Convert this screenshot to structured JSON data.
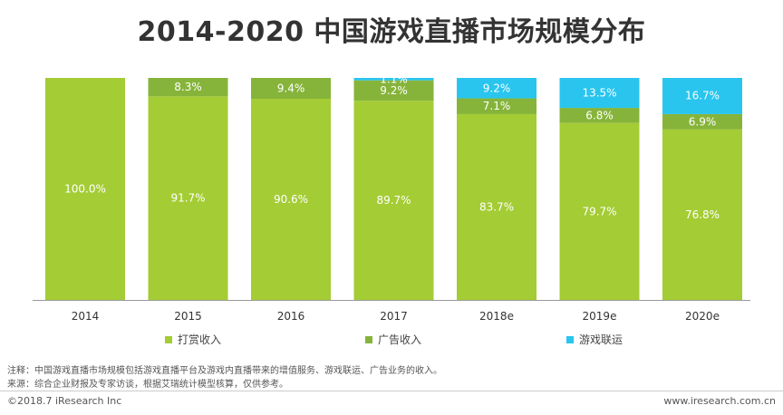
{
  "chart_data": {
    "type": "bar",
    "stacked": true,
    "title": "2014-2020 中国游戏直播市场规模分布",
    "categories": [
      "2014",
      "2015",
      "2016",
      "2017",
      "2018e",
      "2019e",
      "2020e"
    ],
    "series": [
      {
        "name": "打赏收入",
        "color": "#a4cc34",
        "values": [
          100.0,
          91.7,
          90.6,
          89.7,
          83.7,
          79.7,
          76.8
        ],
        "labels": [
          "100.0%",
          "91.7%",
          "90.6%",
          "89.7%",
          "83.7%",
          "79.7%",
          "76.8%"
        ]
      },
      {
        "name": "广告收入",
        "color": "#86b43a",
        "values": [
          0,
          8.3,
          9.4,
          9.2,
          7.1,
          6.8,
          6.9
        ],
        "labels": [
          "",
          "8.3%",
          "9.4%",
          "9.2%",
          "7.1%",
          "6.8%",
          "6.9%"
        ]
      },
      {
        "name": "游戏联运",
        "color": "#29c5ee",
        "values": [
          0,
          0,
          0,
          1.1,
          9.2,
          13.5,
          16.7
        ],
        "labels": [
          "",
          "",
          "",
          "1.1%",
          "9.2%",
          "13.5%",
          "16.7%"
        ]
      }
    ],
    "ylim": [
      0,
      100
    ],
    "legend_position": "bottom"
  },
  "notes": {
    "note1": "注释：中国游戏直播市场规模包括游戏直播平台及游戏内直播带来的增值服务、游戏联运、广告业务的收入。",
    "note2": "来源：综合企业财报及专家访谈，根据艾瑞统计模型核算，仅供参考。"
  },
  "footer": {
    "copyright": "©2018.7 iResearch Inc",
    "website": "www.iresearch.com.cn"
  }
}
